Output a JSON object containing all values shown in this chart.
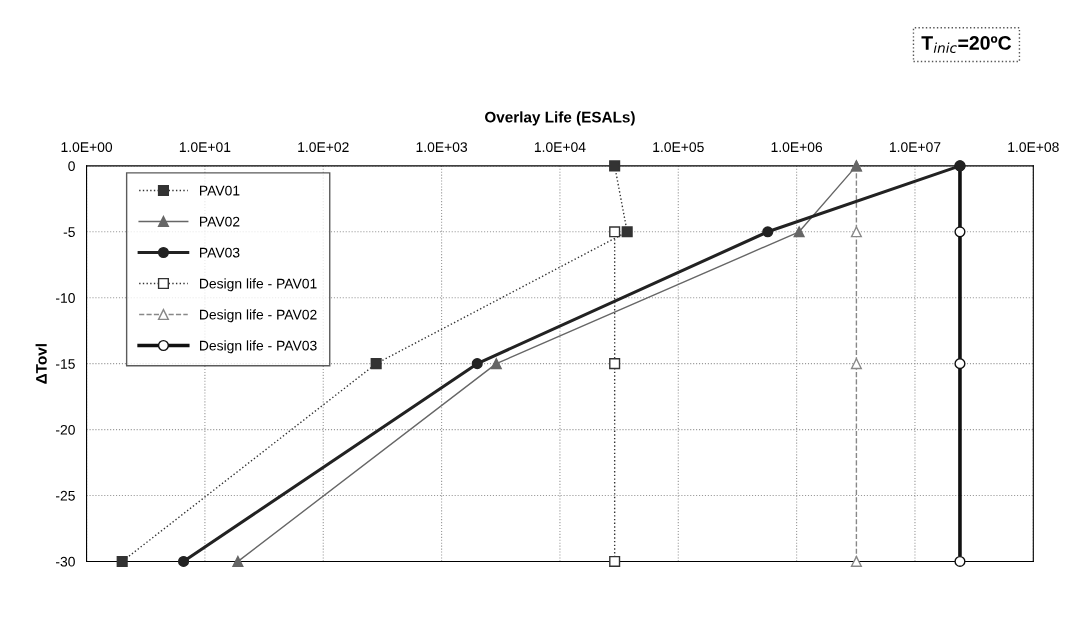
{
  "chart_data": {
    "type": "line",
    "xlabel": "Overlay Life (ESALs)",
    "ylabel": "ΔTovl",
    "log": "x",
    "grid": true,
    "legend": "top left",
    "xlim": [
      1,
      100000000
    ],
    "xticks": [
      {
        "value": 1,
        "label": "1.0E+00"
      },
      {
        "value": 10,
        "label": "1.0E+01"
      },
      {
        "value": 100,
        "label": "1.0E+02"
      },
      {
        "value": 1000,
        "label": "1.0E+03"
      },
      {
        "value": 10000,
        "label": "1.0E+04"
      },
      {
        "value": 100000,
        "label": "1.0E+05"
      },
      {
        "value": 1000000,
        "label": "1.0E+06"
      },
      {
        "value": 10000000,
        "label": "1.0E+07"
      },
      {
        "value": 100000000,
        "label": "1.0E+08"
      }
    ],
    "ylim": [
      -30,
      0
    ],
    "yticks": [
      -30,
      -25,
      -20,
      -15,
      -10,
      -5,
      0
    ],
    "annotations": [
      "T$_{inic}$=20ºC"
    ],
    "series": [
      {
        "name": "PAV01",
        "color": "#333333",
        "marker": "square",
        "line_style": "dotted",
        "x": [
          29000,
          37000,
          280,
          2.0
        ],
        "values": [
          0,
          -5,
          -15,
          -30
        ]
      },
      {
        "name": "PAV02",
        "color": "#666666",
        "marker": "triangle",
        "line_style": "solid",
        "x": [
          3200000,
          1050000,
          2900,
          19
        ],
        "values": [
          0,
          -5,
          -15,
          -30
        ]
      },
      {
        "name": "PAV03",
        "color": "#222222",
        "marker": "circle",
        "line_style": "solid",
        "x": [
          24000000,
          570000,
          2000,
          6.6
        ],
        "values": [
          0,
          -5,
          -15,
          -30
        ]
      },
      {
        "name": "Design life - PAV01",
        "color": "#333333",
        "marker": "square",
        "line_style": "dotted",
        "x": [
          null,
          29000,
          29000,
          29000
        ],
        "values": [
          null,
          -5,
          -15,
          -30
        ]
      },
      {
        "name": "Design life - PAV02",
        "color": "#888888",
        "marker": "triangle",
        "line_style": "dashed",
        "x": [
          3200000,
          3200000,
          3200000,
          3200000
        ],
        "values": [
          0,
          -5,
          -15,
          -30
        ]
      },
      {
        "name": "Design life - PAV03",
        "color": "#111111",
        "marker": "circle",
        "line_style": "solid",
        "x": [
          24000000,
          24000000,
          24000000,
          24000000
        ],
        "values": [
          0,
          -5,
          -15,
          -30
        ]
      }
    ]
  }
}
